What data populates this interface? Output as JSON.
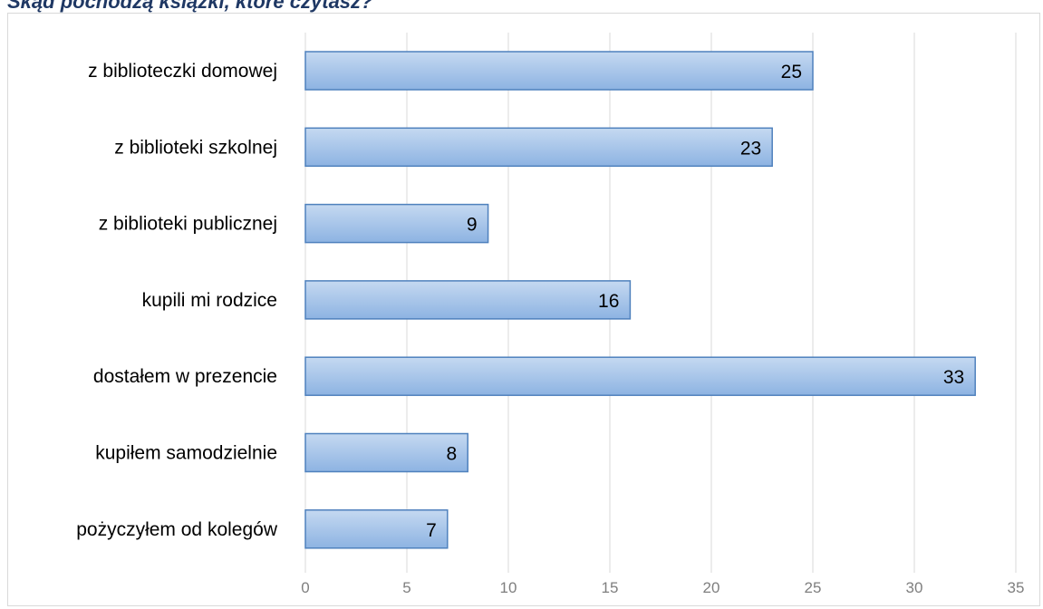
{
  "page": {
    "title": "Skąd pochodzą książki, które czytasz?"
  },
  "chart_data": {
    "type": "bar",
    "orientation": "horizontal",
    "title": "Skąd pochodzą książki, które czytasz?",
    "categories": [
      "z biblioteczki domowej",
      "z biblioteki szkolnej",
      "z biblioteki publicznej",
      "kupili mi rodzice",
      "dostałem w prezencie",
      "kupiłem samodzielnie",
      "pożyczyłem od kolegów"
    ],
    "values": [
      25,
      23,
      9,
      16,
      33,
      8,
      7
    ],
    "xlim": [
      0,
      35
    ],
    "x_ticks": [
      0,
      5,
      10,
      15,
      20,
      25,
      30,
      35
    ],
    "xlabel": "",
    "ylabel": "",
    "grid": "vertical",
    "legend": "none",
    "data_labels": "inside-end",
    "colors": {
      "bar_fill_top": "#c5d9f1",
      "bar_fill_bottom": "#8db3e2",
      "bar_stroke": "#4f81bd",
      "gridline": "#d9d9d9",
      "axis_text": "#7f7f7f"
    }
  }
}
